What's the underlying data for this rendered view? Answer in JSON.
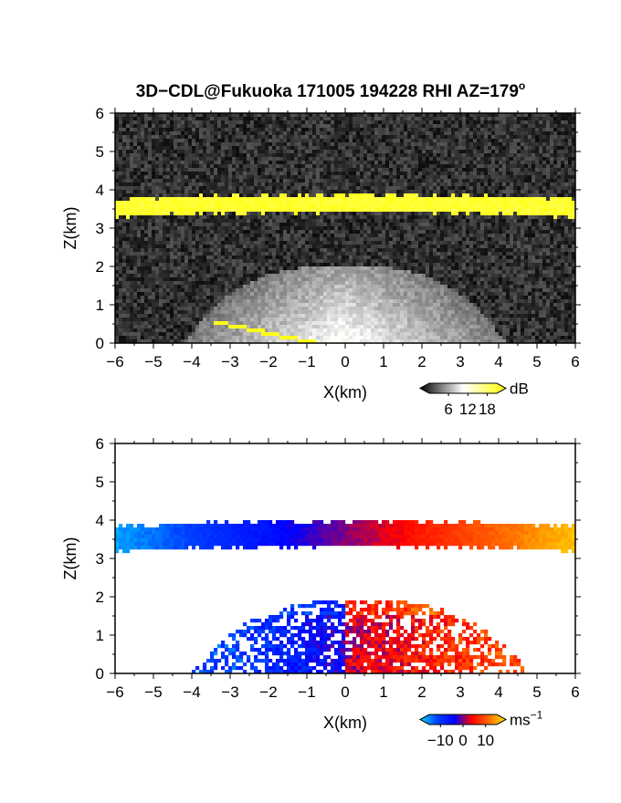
{
  "figure": {
    "title": "3D−CDL@Fukuoka 171005 194228 RHI AZ=179",
    "title_superscript": "o"
  },
  "chart_data": [
    {
      "type": "heatmap",
      "panel": "top",
      "quantity": "backscatter intensity",
      "xlabel": "X(km)",
      "ylabel": "Z(km)",
      "xlim": [
        -6,
        6
      ],
      "ylim": [
        0,
        6
      ],
      "xticks": [
        "−6",
        "−5",
        "−4",
        "−3",
        "−2",
        "−1",
        "0",
        "1",
        "2",
        "3",
        "4",
        "5",
        "6"
      ],
      "yticks": [
        "0",
        "1",
        "2",
        "3",
        "4",
        "5",
        "6"
      ],
      "grid": false,
      "colorbar": {
        "unit": "dB",
        "unit_superscript": "",
        "range": [
          0,
          21
        ],
        "ticks": [
          "6",
          "12",
          "18"
        ],
        "tick_values": [
          6,
          12,
          18
        ],
        "colors": [
          "#000000",
          "#ffffff",
          "#ffff00"
        ]
      },
      "features": [
        {
          "name": "upper layer",
          "x_range": [
            -6,
            6
          ],
          "z_bottom": 3.3,
          "z_top": 3.8,
          "intensity_db": 20
        },
        {
          "name": "boundary layer",
          "x_range": [
            -4.2,
            4.2
          ],
          "z_bottom": 0,
          "z_top": 2.0,
          "peak_db": 11
        },
        {
          "name": "ground echo",
          "x_start": -3.4,
          "z_start": 0.55,
          "x_end": -0.8,
          "z_end": 0.0,
          "intensity_db": 20
        }
      ],
      "background_db": 2
    },
    {
      "type": "heatmap",
      "panel": "bottom",
      "quantity": "Doppler velocity",
      "xlabel": "X(km)",
      "ylabel": "Z(km)",
      "xlim": [
        -6,
        6
      ],
      "ylim": [
        0,
        6
      ],
      "xticks": [
        "−6",
        "−5",
        "−4",
        "−3",
        "−2",
        "−1",
        "0",
        "1",
        "2",
        "3",
        "4",
        "5",
        "6"
      ],
      "yticks": [
        "0",
        "1",
        "2",
        "3",
        "4",
        "5",
        "6"
      ],
      "grid": false,
      "colorbar": {
        "unit": "ms",
        "unit_superscript": "−1",
        "range": [
          -15,
          15
        ],
        "ticks": [
          "−10",
          "0",
          "10"
        ],
        "tick_values": [
          -10,
          0,
          10
        ],
        "colors": [
          "#00d8ff",
          "#0040ff",
          "#0000ff",
          "#ff0000",
          "#ff6a00",
          "#ffee00"
        ]
      },
      "features": [
        {
          "name": "upper layer",
          "x_range": [
            -6,
            6
          ],
          "z_bottom": 3.2,
          "z_top": 3.9,
          "velocity_left": -13,
          "velocity_right": 13
        },
        {
          "name": "boundary layer",
          "x_range": [
            -4.0,
            4.8
          ],
          "z_bottom": 0,
          "z_top": 1.9,
          "velocity_left": -9,
          "velocity_right": 7
        }
      ]
    }
  ]
}
